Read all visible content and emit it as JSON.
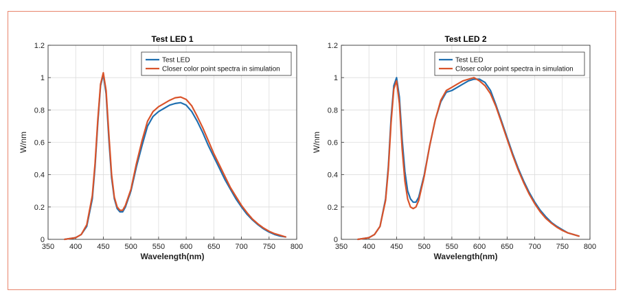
{
  "colors": {
    "test_led": "#1f6fb0",
    "simulation": "#d9532a",
    "frame": "#e8826a"
  },
  "chart_data": [
    {
      "type": "line",
      "title": "Test LED 1",
      "xlabel": "Wavelength(nm)",
      "ylabel": "W/nm",
      "xlim": [
        350,
        800
      ],
      "ylim": [
        0,
        1.2
      ],
      "xticks": [
        350,
        400,
        450,
        500,
        550,
        600,
        650,
        700,
        750,
        800
      ],
      "yticks": [
        0,
        0.2,
        0.4,
        0.6,
        0.8,
        1,
        1.2
      ],
      "ytick_labels": [
        "0",
        "0.2",
        "0.4",
        "0.6",
        "0.8",
        "1",
        "1.2"
      ],
      "grid": true,
      "legend_position": "top-right",
      "series": [
        {
          "name": "Test LED",
          "x": [
            380,
            400,
            410,
            420,
            430,
            435,
            440,
            445,
            450,
            455,
            460,
            465,
            470,
            475,
            480,
            485,
            490,
            500,
            510,
            520,
            530,
            540,
            550,
            560,
            570,
            580,
            590,
            600,
            610,
            620,
            630,
            640,
            650,
            660,
            670,
            680,
            690,
            700,
            710,
            720,
            730,
            740,
            750,
            760,
            770,
            780
          ],
          "y": [
            0.0,
            0.01,
            0.03,
            0.08,
            0.25,
            0.45,
            0.72,
            0.95,
            1.02,
            0.9,
            0.62,
            0.38,
            0.25,
            0.19,
            0.17,
            0.17,
            0.2,
            0.3,
            0.45,
            0.58,
            0.7,
            0.76,
            0.79,
            0.81,
            0.83,
            0.84,
            0.845,
            0.83,
            0.79,
            0.73,
            0.66,
            0.58,
            0.51,
            0.44,
            0.37,
            0.31,
            0.25,
            0.2,
            0.155,
            0.12,
            0.09,
            0.065,
            0.045,
            0.03,
            0.02,
            0.015
          ]
        },
        {
          "name": "Closer color point spectra in simulation",
          "x": [
            380,
            400,
            410,
            420,
            430,
            435,
            440,
            445,
            450,
            455,
            460,
            465,
            470,
            475,
            480,
            485,
            490,
            500,
            510,
            520,
            530,
            540,
            550,
            560,
            570,
            580,
            590,
            600,
            610,
            620,
            630,
            640,
            650,
            660,
            670,
            680,
            690,
            700,
            710,
            720,
            730,
            740,
            750,
            760,
            770,
            780
          ],
          "y": [
            0.0,
            0.01,
            0.03,
            0.09,
            0.27,
            0.47,
            0.74,
            0.96,
            1.03,
            0.92,
            0.65,
            0.4,
            0.26,
            0.2,
            0.18,
            0.18,
            0.21,
            0.31,
            0.47,
            0.61,
            0.73,
            0.79,
            0.82,
            0.84,
            0.86,
            0.875,
            0.88,
            0.865,
            0.825,
            0.76,
            0.69,
            0.61,
            0.53,
            0.46,
            0.39,
            0.32,
            0.265,
            0.21,
            0.165,
            0.125,
            0.095,
            0.07,
            0.05,
            0.035,
            0.025,
            0.015
          ]
        }
      ]
    },
    {
      "type": "line",
      "title": "Test LED 2",
      "xlabel": "Wavelength(nm)",
      "ylabel": "W/nm",
      "xlim": [
        350,
        800
      ],
      "ylim": [
        0,
        1.2
      ],
      "xticks": [
        350,
        400,
        450,
        500,
        550,
        600,
        650,
        700,
        750,
        800
      ],
      "yticks": [
        0,
        0.2,
        0.4,
        0.6,
        0.8,
        1,
        1.2
      ],
      "ytick_labels": [
        "0",
        "0.2",
        "0.4",
        "0.6",
        "0.8",
        "1",
        "1.2"
      ],
      "grid": true,
      "legend_position": "top-right",
      "series": [
        {
          "name": "Test LED",
          "x": [
            380,
            400,
            410,
            420,
            430,
            435,
            440,
            445,
            450,
            455,
            460,
            465,
            470,
            475,
            480,
            485,
            490,
            500,
            510,
            520,
            530,
            540,
            550,
            560,
            570,
            580,
            590,
            600,
            610,
            620,
            630,
            640,
            650,
            660,
            670,
            680,
            690,
            700,
            710,
            720,
            730,
            740,
            750,
            760,
            770,
            780
          ],
          "y": [
            0.0,
            0.01,
            0.03,
            0.08,
            0.25,
            0.45,
            0.75,
            0.95,
            1.0,
            0.88,
            0.62,
            0.42,
            0.3,
            0.25,
            0.23,
            0.23,
            0.26,
            0.4,
            0.58,
            0.74,
            0.85,
            0.91,
            0.92,
            0.94,
            0.96,
            0.98,
            0.99,
            0.99,
            0.97,
            0.92,
            0.83,
            0.73,
            0.63,
            0.53,
            0.44,
            0.36,
            0.29,
            0.23,
            0.18,
            0.14,
            0.105,
            0.08,
            0.06,
            0.04,
            0.03,
            0.02
          ]
        },
        {
          "name": "Closer color point spectra in simulation",
          "x": [
            380,
            400,
            410,
            420,
            430,
            435,
            440,
            445,
            450,
            455,
            460,
            465,
            470,
            475,
            480,
            485,
            490,
            500,
            510,
            520,
            530,
            540,
            550,
            560,
            570,
            580,
            590,
            600,
            610,
            620,
            630,
            640,
            650,
            660,
            670,
            680,
            690,
            700,
            710,
            720,
            730,
            740,
            750,
            760,
            770,
            780
          ],
          "y": [
            0.0,
            0.01,
            0.03,
            0.08,
            0.24,
            0.43,
            0.72,
            0.93,
            0.98,
            0.84,
            0.56,
            0.36,
            0.25,
            0.2,
            0.19,
            0.2,
            0.24,
            0.39,
            0.58,
            0.74,
            0.86,
            0.92,
            0.94,
            0.96,
            0.98,
            0.99,
            1.0,
            0.98,
            0.95,
            0.9,
            0.82,
            0.72,
            0.62,
            0.52,
            0.43,
            0.35,
            0.28,
            0.22,
            0.17,
            0.13,
            0.1,
            0.075,
            0.055,
            0.04,
            0.03,
            0.02
          ]
        }
      ]
    }
  ]
}
